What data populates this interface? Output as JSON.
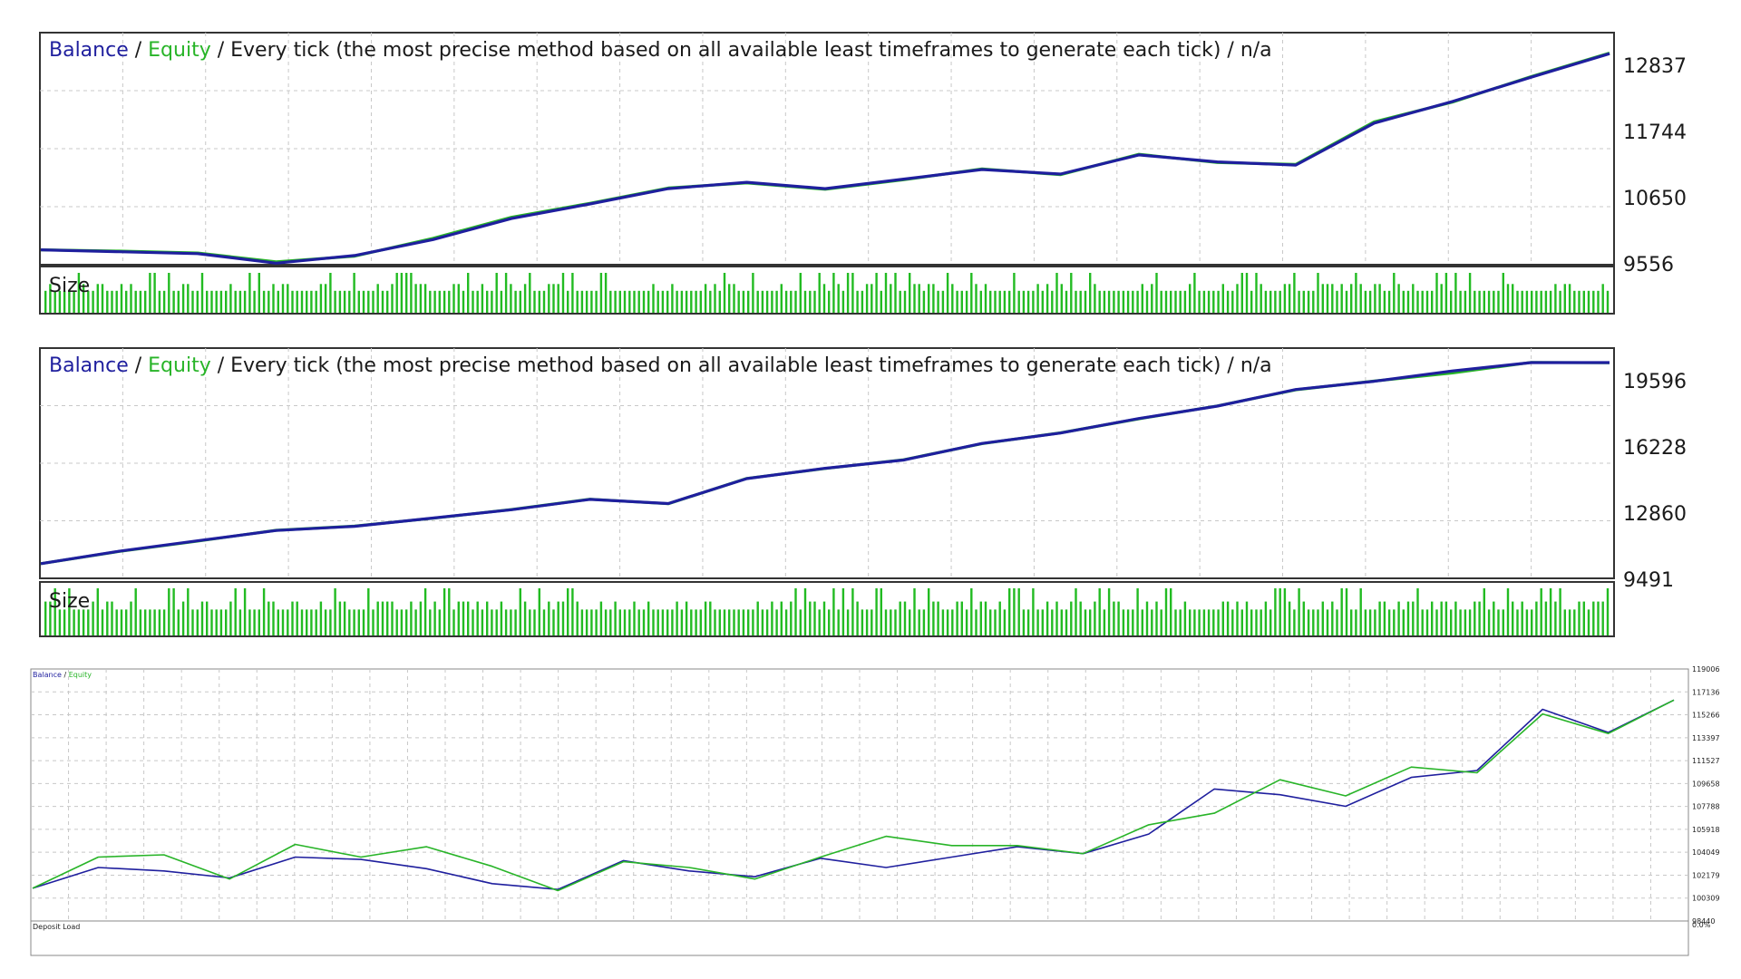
{
  "colors": {
    "balance": "#1f1f9e",
    "equity": "#28b428",
    "size_bars": "#22bb22",
    "grid": "#c8c8c8",
    "frame": "#333333"
  },
  "chart_data": [
    {
      "type": "line",
      "legend": {
        "balance": "Balance",
        "equity": "Equity",
        "tail": "Every tick (the most precise method based on all available least timeframes to generate each tick) / n/a"
      },
      "separator": " / ",
      "y_ticks": [
        "12837",
        "11744",
        "10650",
        "9556"
      ],
      "ylim": [
        9556,
        13200
      ],
      "subpanel_label": "Size",
      "series": [
        {
          "name": "Balance",
          "x": [
            0,
            5,
            10,
            15,
            20,
            25,
            30,
            35,
            40,
            45,
            50,
            55,
            60,
            65,
            70,
            75,
            80,
            85,
            90,
            95,
            100
          ],
          "values": [
            9790,
            9760,
            9730,
            9580,
            9700,
            9950,
            10280,
            10510,
            10750,
            10850,
            10750,
            10900,
            11050,
            10980,
            11280,
            11170,
            11120,
            11780,
            12120,
            12500,
            12870
          ]
        },
        {
          "name": "Equity",
          "x": [
            0,
            5,
            10,
            15,
            20,
            25,
            30,
            35,
            40,
            45,
            50,
            55,
            60,
            65,
            70,
            75,
            80,
            85,
            90,
            95,
            100
          ],
          "values": [
            9790,
            9770,
            9740,
            9600,
            9690,
            9970,
            10300,
            10520,
            10760,
            10840,
            10740,
            10890,
            11060,
            10970,
            11290,
            11160,
            11130,
            11800,
            12110,
            12510,
            12880
          ]
        }
      ]
    },
    {
      "type": "line",
      "legend": {
        "balance": "Balance",
        "equity": "Equity",
        "tail": "Every tick (the most precise method based on all available least timeframes to generate each tick) / n/a"
      },
      "separator": " / ",
      "y_ticks": [
        "19596",
        "16228",
        "12860",
        "9491"
      ],
      "ylim": [
        9491,
        20600
      ],
      "subpanel_label": "Size",
      "series": [
        {
          "name": "Balance",
          "x": [
            0,
            5,
            10,
            15,
            20,
            25,
            30,
            35,
            40,
            45,
            50,
            55,
            60,
            65,
            70,
            75,
            80,
            85,
            90,
            95,
            100
          ],
          "values": [
            10200,
            10800,
            11300,
            11800,
            12000,
            12400,
            12800,
            13300,
            13100,
            14300,
            14800,
            15200,
            16000,
            16500,
            17200,
            17800,
            18600,
            19000,
            19500,
            19900,
            19900
          ]
        },
        {
          "name": "Equity",
          "x": [
            0,
            5,
            10,
            15,
            20,
            25,
            30,
            35,
            40,
            45,
            50,
            55,
            60,
            65,
            70,
            75,
            80,
            85,
            90,
            95,
            100
          ],
          "values": [
            10200,
            10790,
            11290,
            11810,
            12010,
            12390,
            12810,
            13310,
            13090,
            14310,
            14790,
            15210,
            15990,
            16510,
            17190,
            17810,
            18590,
            19010,
            19400,
            19910,
            19890
          ]
        }
      ]
    },
    {
      "type": "line",
      "legend": {
        "balance": "Balance",
        "equity": "Equity"
      },
      "separator": " / ",
      "y_ticks": [
        "119006",
        "117136",
        "115266",
        "113397",
        "111527",
        "109658",
        "107788",
        "105918",
        "104049",
        "102179",
        "100309",
        "98440"
      ],
      "ylim": [
        98440,
        119006
      ],
      "subpanel_label": "Deposit Load",
      "subpanel_value": "0.0%",
      "series": [
        {
          "name": "Balance",
          "x": [
            0,
            4,
            8,
            12,
            16,
            20,
            24,
            28,
            32,
            36,
            40,
            44,
            48,
            52,
            56,
            60,
            64,
            68,
            72,
            76,
            80,
            84,
            88,
            92,
            96,
            100
          ],
          "values": [
            100800,
            102600,
            102300,
            101700,
            103500,
            103300,
            102500,
            101200,
            100700,
            103200,
            102300,
            101800,
            103400,
            102600,
            103500,
            104400,
            103800,
            105500,
            109400,
            108900,
            107900,
            110400,
            111000,
            116300,
            114300,
            117100
          ]
        },
        {
          "name": "Equity",
          "x": [
            0,
            4,
            8,
            12,
            16,
            20,
            24,
            28,
            32,
            36,
            40,
            44,
            48,
            52,
            56,
            60,
            64,
            68,
            72,
            76,
            80,
            84,
            88,
            92,
            96,
            100
          ],
          "values": [
            100800,
            103500,
            103700,
            101600,
            104600,
            103500,
            104400,
            102700,
            100600,
            103100,
            102600,
            101600,
            103500,
            105300,
            104500,
            104500,
            103800,
            106300,
            107300,
            110200,
            108800,
            111300,
            110800,
            115900,
            114200,
            117100
          ]
        }
      ]
    }
  ]
}
